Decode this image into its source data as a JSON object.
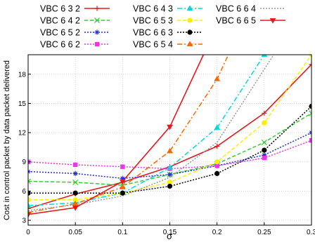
{
  "chart_data": {
    "type": "line",
    "xlabel": "σ",
    "ylabel": "Cost in control packet by data packet delivered",
    "xlim": [
      0,
      0.3
    ],
    "ylim": [
      2.5,
      20
    ],
    "x_ticks": [
      "0",
      "0.05",
      "0.1",
      "0.15",
      "0.2",
      "0.25",
      "0.3"
    ],
    "y_ticks": [
      "3",
      "6",
      "9",
      "12",
      "15",
      "18"
    ],
    "legend_position": "top",
    "grid": true,
    "x": [
      0,
      0.05,
      0.1,
      0.15,
      0.2,
      0.25,
      0.3
    ],
    "series": [
      {
        "name": "VBC 6 3 2",
        "color": "#e41a1c",
        "marker": "plus",
        "dash": "solid",
        "values": [
          4.2,
          5.7,
          6.9,
          8.5,
          10.6,
          14.0,
          19.0
        ]
      },
      {
        "name": "VBC 6 4 2",
        "color": "#33cc33",
        "marker": "x",
        "dash": "dashed",
        "values": [
          7.0,
          6.9,
          6.6,
          7.7,
          8.8,
          11.0,
          14.0
        ]
      },
      {
        "name": "VBC 6 5 2",
        "color": "#1f2fd0",
        "marker": "star",
        "dash": "dotted",
        "values": [
          8.0,
          7.8,
          7.3,
          7.7,
          8.6,
          9.7,
          12.0
        ]
      },
      {
        "name": "VBC 6 6 2",
        "color": "#ee33ee",
        "marker": "square",
        "dash": "dotted",
        "values": [
          9.0,
          8.7,
          8.5,
          8.3,
          8.6,
          9.4,
          11.2
        ]
      },
      {
        "name": "VBC 6 4 3",
        "color": "#00d9d9",
        "marker": "triangle",
        "dash": "dashdot",
        "values": [
          4.5,
          4.8,
          5.8,
          8.4,
          12.5,
          20.0,
          null
        ]
      },
      {
        "name": "VBC 6 5 3",
        "color": "#ffee00",
        "marker": "circle",
        "dash": "dashed",
        "values": [
          5.1,
          5.1,
          5.8,
          6.9,
          9.0,
          13.0,
          20.0
        ]
      },
      {
        "name": "VBC 6 6 3",
        "color": "#000000",
        "marker": "circle",
        "dash": "dotted",
        "values": [
          5.8,
          5.8,
          5.8,
          6.5,
          7.8,
          10.2,
          14.7
        ]
      },
      {
        "name": "VBC 6 5 4",
        "color": "#ff6600",
        "marker": "triangle",
        "dash": "dashdot",
        "values": [
          3.8,
          4.7,
          6.4,
          10.1,
          17.5,
          28.0,
          null
        ]
      },
      {
        "name": "VBC 6 6 4",
        "color": "#999999",
        "marker": "none",
        "dash": "dotted",
        "values": [
          4.0,
          4.6,
          5.5,
          7.4,
          11.0,
          18.5,
          26.0
        ]
      },
      {
        "name": "VBC 6 6 5",
        "color": "#e41a1c",
        "marker": "triangle-down",
        "dash": "solid",
        "values": [
          3.6,
          4.3,
          7.0,
          12.6,
          23.0,
          null,
          null
        ]
      }
    ]
  }
}
